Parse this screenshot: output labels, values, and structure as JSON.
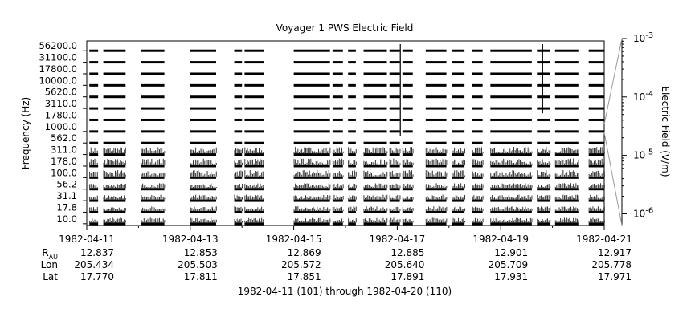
{
  "chart_data": {
    "type": "heatmap",
    "title": "Voyager 1 PWS Electric Field",
    "ylabel": "Frequency (Hz)",
    "colorbar_label": "Electric Field (V/m)",
    "colorbar_scale": "log",
    "colorbar_range": [
      "1e-6.2",
      "1e-3"
    ],
    "colorbar_ticks": [
      {
        "base": "10",
        "exp": "-3",
        "value": 0.001
      },
      {
        "base": "10",
        "exp": "-4",
        "value": 0.0001
      },
      {
        "base": "10",
        "exp": "-5",
        "value": 1e-05
      },
      {
        "base": "10",
        "exp": "-6",
        "value": 1e-06
      }
    ],
    "frequency_channels": [
      "56200.0",
      "31100.0",
      "17800.0",
      "10000.0",
      "5620.0",
      "3110.0",
      "1780.0",
      "1000.0",
      "562.0",
      "311.0",
      "178.0",
      "100.0",
      "56.2",
      "31.1",
      "17.8",
      "10.0"
    ],
    "channel_count": 16,
    "x_ticks": [
      "1982-04-11",
      "1982-04-13",
      "1982-04-15",
      "1982-04-17",
      "1982-04-19",
      "1982-04-21"
    ],
    "x_range_days": [
      0,
      10
    ],
    "data_segments_days": [
      [
        0.05,
        0.22
      ],
      [
        0.32,
        0.75
      ],
      [
        1.05,
        1.5
      ],
      [
        2.0,
        2.5
      ],
      [
        2.85,
        3.0
      ],
      [
        3.05,
        3.42
      ],
      [
        4.0,
        4.7
      ],
      [
        4.75,
        4.95
      ],
      [
        5.05,
        5.2
      ],
      [
        5.35,
        5.8
      ],
      [
        5.85,
        6.05
      ],
      [
        6.1,
        6.3
      ],
      [
        6.55,
        6.95
      ],
      [
        7.05,
        7.3
      ],
      [
        7.45,
        7.65
      ],
      [
        7.8,
        8.6
      ],
      [
        8.7,
        8.95
      ],
      [
        9.05,
        9.5
      ],
      [
        9.7,
        10.0
      ]
    ],
    "ephemeris_rows": [
      {
        "label": "R",
        "sub": "AU",
        "values": [
          "12.837",
          "12.853",
          "12.869",
          "12.885",
          "12.901",
          "12.917"
        ]
      },
      {
        "label": "Lon",
        "sub": "",
        "values": [
          "205.434",
          "205.503",
          "205.572",
          "205.640",
          "205.709",
          "205.778"
        ]
      },
      {
        "label": "Lat",
        "sub": "",
        "values": [
          "17.770",
          "17.811",
          "17.851",
          "17.891",
          "17.931",
          "17.971"
        ]
      }
    ],
    "footer": "1982-04-11 (101) through 1982-04-20 (110)"
  }
}
